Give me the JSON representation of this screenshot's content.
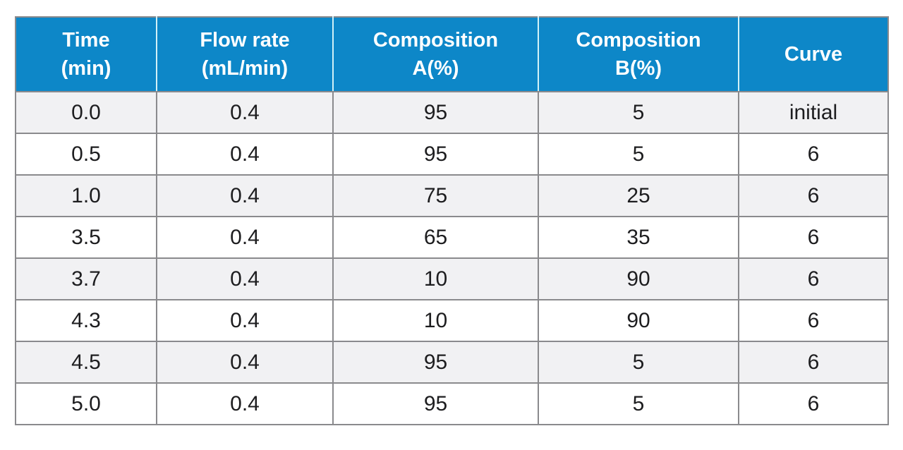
{
  "colors": {
    "header_bg": "#0d87c8",
    "header_text": "#ffffff",
    "header_divider": "#d2f1f7",
    "row_alt_bg": "#f1f1f3",
    "row_bg": "#ffffff",
    "border": "#8a8a8d",
    "cell_text": "#1d1d1f"
  },
  "chart_data": {
    "type": "table",
    "columns": [
      "Time (min)",
      "Flow rate (mL/min)",
      "Composition A(%)",
      "Composition B(%)",
      "Curve"
    ],
    "rows": [
      [
        "0.0",
        "0.4",
        "95",
        "5",
        "initial"
      ],
      [
        "0.5",
        "0.4",
        "95",
        "5",
        "6"
      ],
      [
        "1.0",
        "0.4",
        "75",
        "25",
        "6"
      ],
      [
        "3.5",
        "0.4",
        "65",
        "35",
        "6"
      ],
      [
        "3.7",
        "0.4",
        "10",
        "90",
        "6"
      ],
      [
        "4.3",
        "0.4",
        "10",
        "90",
        "6"
      ],
      [
        "4.5",
        "0.4",
        "95",
        "5",
        "6"
      ],
      [
        "5.0",
        "0.4",
        "95",
        "5",
        "6"
      ]
    ]
  },
  "table": {
    "headers": [
      {
        "line1": "Time",
        "line2": "(min)"
      },
      {
        "line1": "Flow rate",
        "line2": "(mL/min)"
      },
      {
        "line1": "Composition",
        "line2": "A(%)"
      },
      {
        "line1": "Composition",
        "line2": "B(%)"
      },
      {
        "line1": "Curve",
        "line2": ""
      }
    ],
    "rows": [
      [
        "0.0",
        "0.4",
        "95",
        "5",
        "initial"
      ],
      [
        "0.5",
        "0.4",
        "95",
        "5",
        "6"
      ],
      [
        "1.0",
        "0.4",
        "75",
        "25",
        "6"
      ],
      [
        "3.5",
        "0.4",
        "65",
        "35",
        "6"
      ],
      [
        "3.7",
        "0.4",
        "10",
        "90",
        "6"
      ],
      [
        "4.3",
        "0.4",
        "10",
        "90",
        "6"
      ],
      [
        "4.5",
        "0.4",
        "95",
        "5",
        "6"
      ],
      [
        "5.0",
        "0.4",
        "95",
        "5",
        "6"
      ]
    ]
  }
}
